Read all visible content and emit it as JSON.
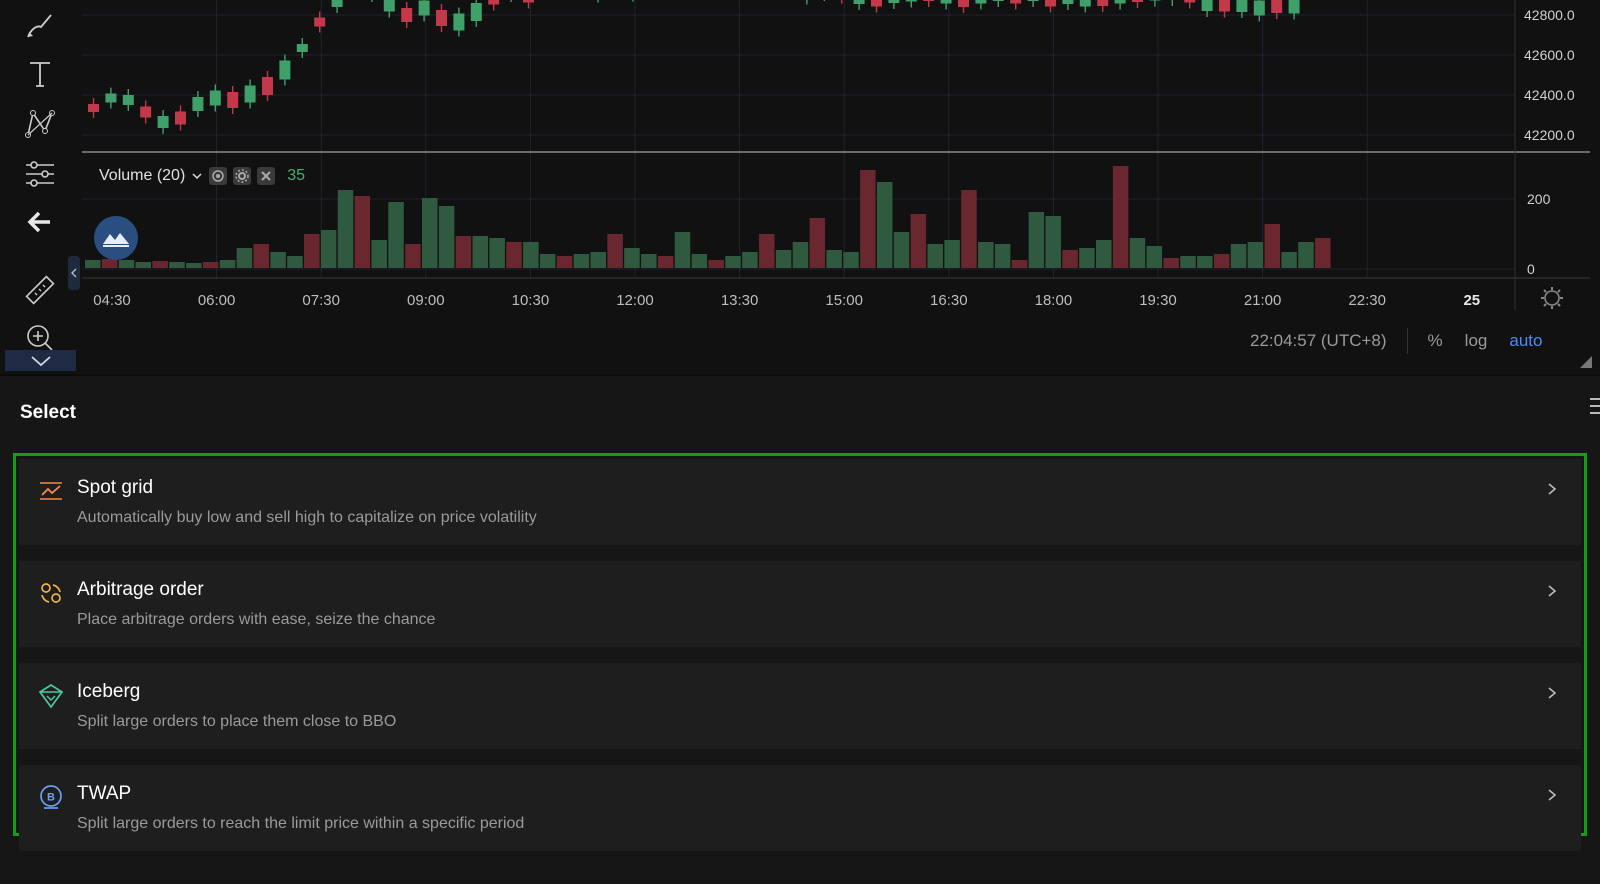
{
  "chart": {
    "price_axis_labels": [
      "42800.0",
      "42600.0",
      "42400.0",
      "42200.0"
    ],
    "volume_axis_labels": [
      "200",
      "0"
    ],
    "time_axis_labels": [
      "04:30",
      "06:00",
      "07:30",
      "09:00",
      "10:30",
      "12:00",
      "13:30",
      "15:00",
      "16:30",
      "18:00",
      "19:30",
      "21:00",
      "22:30",
      "25"
    ],
    "volume_indicator": {
      "label": "Volume (20)",
      "value": "35"
    },
    "timezone_time": "22:04:57 (UTC+8)",
    "scale_options": {
      "percent": "%",
      "log": "log",
      "auto": "auto"
    },
    "colors": {
      "up": "#3fa06a",
      "down": "#c4394a",
      "accent": "#4c8df6"
    }
  },
  "toolbar": {
    "tools": [
      "brush-icon",
      "text-icon",
      "pattern-icon",
      "indicator-settings-icon",
      "back-arrow-icon",
      "ruler-icon",
      "zoom-in-icon"
    ]
  },
  "panel": {
    "title": "Select",
    "options": [
      {
        "title": "Spot grid",
        "description": "Automatically buy low and sell high to capitalize on price volatility",
        "icon": "grid-icon",
        "icon_color": "#f28a4c"
      },
      {
        "title": "Arbitrage order",
        "description": "Place arbitrage orders with ease, seize the chance",
        "icon": "arbitrage-icon",
        "icon_color": "#f0b44c"
      },
      {
        "title": "Iceberg",
        "description": "Split large orders to place them close to BBO",
        "icon": "iceberg-icon",
        "icon_color": "#4cc9a0"
      },
      {
        "title": "TWAP",
        "description": "Split large orders to reach the limit price within a specific period",
        "icon": "twap-icon",
        "icon_color": "#6aa0f5"
      }
    ]
  }
}
